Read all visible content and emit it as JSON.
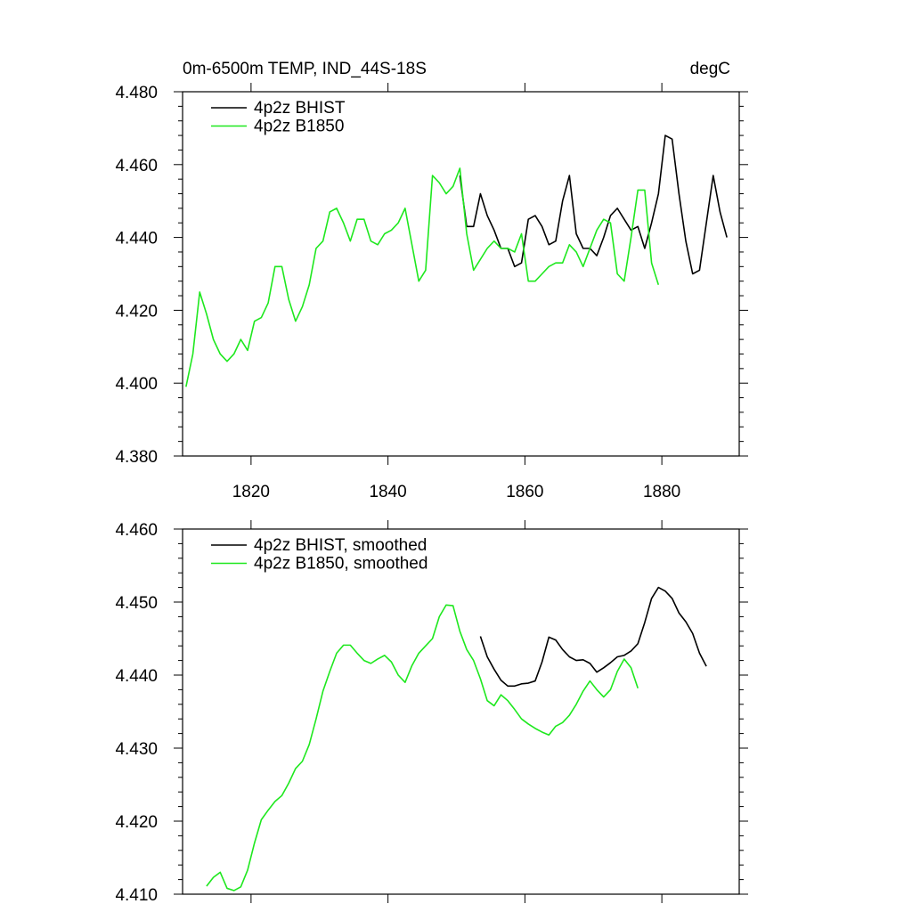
{
  "chart_data": [
    {
      "type": "line",
      "title": "0m-6500m TEMP, IND_44S-18S",
      "units": "degC",
      "x": [
        1810.5,
        1811.5,
        1812.5,
        1813.5,
        1814.5,
        1815.5,
        1816.5,
        1817.5,
        1818.5,
        1819.5,
        1820.5,
        1821.5,
        1822.5,
        1823.5,
        1824.5,
        1825.5,
        1826.5,
        1827.5,
        1828.5,
        1829.5,
        1830.5,
        1831.5,
        1832.5,
        1833.5,
        1834.5,
        1835.5,
        1836.5,
        1837.5,
        1838.5,
        1839.5,
        1840.5,
        1841.5,
        1842.5,
        1843.5,
        1844.5,
        1845.5,
        1846.5,
        1847.5,
        1848.5,
        1849.5,
        1850.5,
        1851.5,
        1852.5,
        1853.5,
        1854.5,
        1855.5,
        1856.5,
        1857.5,
        1858.5,
        1859.5,
        1860.5,
        1861.5,
        1862.5,
        1863.5,
        1864.5,
        1865.5,
        1866.5,
        1867.5,
        1868.5,
        1869.5,
        1870.5,
        1871.5,
        1872.5,
        1873.5,
        1874.5,
        1875.5,
        1876.5,
        1877.5,
        1878.5,
        1879.5,
        1880.5,
        1881.5,
        1882.5,
        1883.5,
        1884.5,
        1885.5,
        1886.5,
        1887.5,
        1888.5,
        1889.5
      ],
      "series": [
        {
          "name": "4p2z BHIST",
          "color": "#000000",
          "values": [
            null,
            null,
            null,
            null,
            null,
            null,
            null,
            null,
            null,
            null,
            null,
            null,
            null,
            null,
            null,
            null,
            null,
            null,
            null,
            null,
            null,
            null,
            null,
            null,
            null,
            null,
            null,
            null,
            null,
            null,
            null,
            null,
            null,
            null,
            null,
            null,
            null,
            null,
            null,
            null,
            4.457,
            4.443,
            4.443,
            4.452,
            4.446,
            4.442,
            4.437,
            4.437,
            4.432,
            4.433,
            4.445,
            4.446,
            4.443,
            4.438,
            4.439,
            4.45,
            4.457,
            4.441,
            4.437,
            4.437,
            4.435,
            4.44,
            4.446,
            4.448,
            4.445,
            4.442,
            4.443,
            4.437,
            4.444,
            4.452,
            4.468,
            4.467,
            4.452,
            4.439,
            4.43,
            4.431,
            4.444,
            4.457,
            4.447,
            4.44
          ]
        },
        {
          "name": "4p2z B1850",
          "color": "#1ee81e",
          "values": [
            4.399,
            4.408,
            4.425,
            4.419,
            4.412,
            4.408,
            4.406,
            4.408,
            4.412,
            4.409,
            4.417,
            4.418,
            4.422,
            4.432,
            4.432,
            4.423,
            4.417,
            4.421,
            4.427,
            4.437,
            4.439,
            4.447,
            4.448,
            4.444,
            4.439,
            4.445,
            4.445,
            4.439,
            4.438,
            4.441,
            4.442,
            4.444,
            4.448,
            4.438,
            4.428,
            4.431,
            4.457,
            4.455,
            4.452,
            4.454,
            4.459,
            4.441,
            4.431,
            4.434,
            4.437,
            4.439,
            4.437,
            4.437,
            4.436,
            4.441,
            4.428,
            4.428,
            4.43,
            4.432,
            4.433,
            4.433,
            4.438,
            4.436,
            4.432,
            4.437,
            4.442,
            4.445,
            4.444,
            4.43,
            4.428,
            4.44,
            4.453,
            4.453,
            4.433,
            4.427,
            null,
            null,
            null,
            null,
            null,
            null,
            null,
            null,
            null,
            null
          ]
        }
      ],
      "xlim": [
        1810,
        1891.3
      ],
      "xticks": [
        1820,
        1840,
        1860,
        1880
      ],
      "ylim": [
        4.38,
        4.48
      ],
      "yticks": [
        {
          "value": 4.38,
          "label": "4.380"
        },
        {
          "value": 4.4,
          "label": "4.400"
        },
        {
          "value": 4.42,
          "label": "4.420"
        },
        {
          "value": 4.44,
          "label": "4.440"
        },
        {
          "value": 4.46,
          "label": "4.460"
        },
        {
          "value": 4.48,
          "label": "4.480"
        }
      ],
      "legend": "top-left"
    },
    {
      "type": "line",
      "x": [
        1813.5,
        1814.5,
        1815.5,
        1816.5,
        1817.5,
        1818.5,
        1819.5,
        1820.5,
        1821.5,
        1822.5,
        1823.5,
        1824.5,
        1825.5,
        1826.5,
        1827.5,
        1828.5,
        1829.5,
        1830.5,
        1831.5,
        1832.5,
        1833.5,
        1834.5,
        1835.5,
        1836.5,
        1837.5,
        1838.5,
        1839.5,
        1840.5,
        1841.5,
        1842.5,
        1843.5,
        1844.5,
        1845.5,
        1846.5,
        1847.5,
        1848.5,
        1849.5,
        1850.5,
        1851.5,
        1852.5,
        1853.5,
        1854.5,
        1855.5,
        1856.5,
        1857.5,
        1858.5,
        1859.5,
        1860.5,
        1861.5,
        1862.5,
        1863.5,
        1864.5,
        1865.5,
        1866.5,
        1867.5,
        1868.5,
        1869.5,
        1870.5,
        1871.5,
        1872.5,
        1873.5,
        1874.5,
        1875.5,
        1876.5,
        1877.5,
        1878.5,
        1879.5,
        1880.5,
        1881.5,
        1882.5,
        1883.5,
        1884.5,
        1885.5,
        1886.5
      ],
      "series": [
        {
          "name": "4p2z BHIST, smoothed",
          "color": "#000000",
          "values": [
            null,
            null,
            null,
            null,
            null,
            null,
            null,
            null,
            null,
            null,
            null,
            null,
            null,
            null,
            null,
            null,
            null,
            null,
            null,
            null,
            null,
            null,
            null,
            null,
            null,
            null,
            null,
            null,
            null,
            null,
            null,
            null,
            null,
            null,
            null,
            null,
            null,
            null,
            null,
            null,
            4.4453,
            4.4425,
            4.4408,
            4.4393,
            4.4385,
            4.4385,
            4.4388,
            4.4389,
            4.4392,
            4.4418,
            4.4452,
            4.4448,
            4.4435,
            4.4425,
            4.442,
            4.4421,
            4.4416,
            4.4404,
            4.441,
            4.4417,
            4.4425,
            4.4427,
            4.4433,
            4.4443,
            4.4472,
            4.4505,
            4.452,
            4.4515,
            4.4505,
            4.4485,
            4.4473,
            4.4457,
            4.443,
            4.4412
          ]
        },
        {
          "name": "4p2z B1850, smoothed",
          "color": "#1ee81e",
          "values": [
            4.4111,
            4.4123,
            4.413,
            4.4108,
            4.4105,
            4.411,
            4.4133,
            4.417,
            4.4202,
            4.4215,
            4.4227,
            4.4235,
            4.4252,
            4.4272,
            4.4282,
            4.4305,
            4.434,
            4.4378,
            4.4405,
            4.443,
            4.4441,
            4.4441,
            4.443,
            4.442,
            4.4416,
            4.4422,
            4.4427,
            4.4418,
            4.44,
            4.439,
            4.4413,
            4.443,
            4.444,
            4.445,
            4.448,
            4.4496,
            4.4495,
            4.446,
            4.4435,
            4.442,
            4.4395,
            4.4365,
            4.4358,
            4.4373,
            4.4365,
            4.4353,
            4.434,
            4.4333,
            4.4327,
            4.4322,
            4.4318,
            4.433,
            4.4335,
            4.4345,
            4.436,
            4.4378,
            4.4392,
            4.438,
            4.437,
            4.438,
            4.4405,
            4.4422,
            4.441,
            4.4382,
            null,
            null,
            null,
            null,
            null,
            null,
            null,
            null,
            null,
            null
          ]
        }
      ],
      "xlim": [
        1810,
        1891.3
      ],
      "xticks": [
        1820,
        1840,
        1860,
        1880
      ],
      "ylim": [
        4.41,
        4.46
      ],
      "yticks": [
        {
          "value": 4.41,
          "label": "4.410"
        },
        {
          "value": 4.42,
          "label": "4.420"
        },
        {
          "value": 4.43,
          "label": "4.430"
        },
        {
          "value": 4.44,
          "label": "4.440"
        },
        {
          "value": 4.45,
          "label": "4.450"
        },
        {
          "value": 4.46,
          "label": "4.460"
        }
      ],
      "legend": "top-left"
    }
  ]
}
